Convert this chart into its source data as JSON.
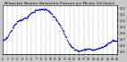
{
  "title": "Milwaukee Weather Barometric Pressure per Minute (24 Hours)",
  "bg_color": "#c8c8c8",
  "plot_bg_color": "#ffffff",
  "dot_color": "#0000cc",
  "grid_color": "#888888",
  "ylim": [
    29.45,
    30.25
  ],
  "yticks": [
    29.5,
    29.6,
    29.7,
    29.8,
    29.9,
    30.0,
    30.1,
    30.2
  ],
  "xlim": [
    0,
    1440
  ],
  "xtick_step": 60,
  "dot_size": 1.2,
  "noise_std": 0.004,
  "seed": 42,
  "keypoints_minutes": [
    0,
    60,
    120,
    180,
    300,
    360,
    420,
    480,
    540,
    600,
    660,
    720,
    780,
    840,
    900,
    960,
    1020,
    1080,
    1140,
    1200,
    1260,
    1320,
    1380,
    1440
  ],
  "keypoints_pressure": [
    29.68,
    29.73,
    29.88,
    29.98,
    30.05,
    30.12,
    30.17,
    30.18,
    30.18,
    30.13,
    30.03,
    29.93,
    29.77,
    29.61,
    29.53,
    29.5,
    29.52,
    29.54,
    29.52,
    29.55,
    29.57,
    29.62,
    29.68,
    29.66
  ]
}
